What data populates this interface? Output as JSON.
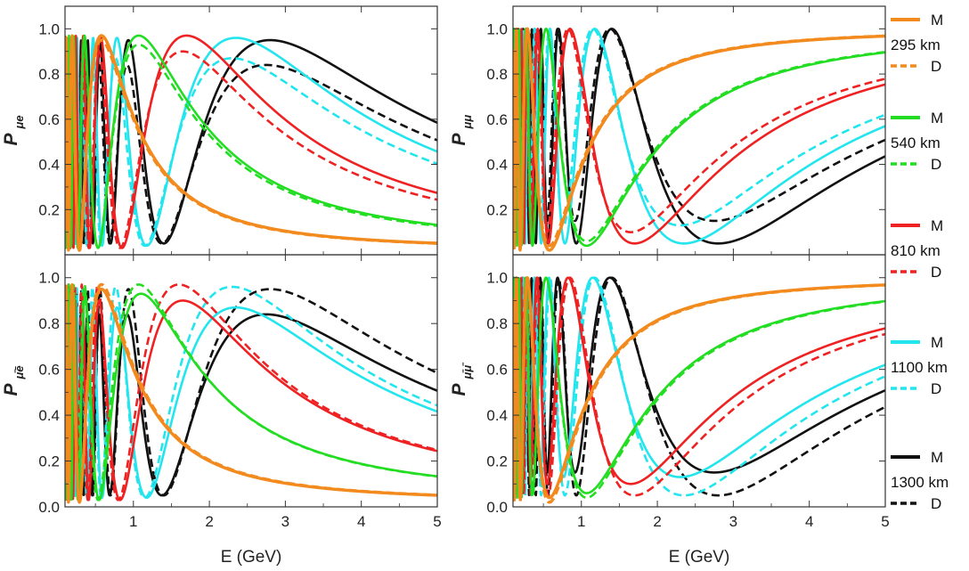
{
  "chart_data": [
    {
      "type": "line",
      "panel": "top-left",
      "ylabel_main": "P",
      "ylabel_sub": "μe",
      "xlabel": "",
      "xlim": [
        0.1,
        5
      ],
      "ylim": [
        0,
        1.1
      ],
      "xticks": [
        "1",
        "2",
        "3",
        "4",
        "5"
      ],
      "yticks": [
        "0.2",
        "0.4",
        "0.6",
        "0.8",
        "1.0"
      ],
      "series": [
        {
          "name": "295 km M",
          "color": "#f28a1e",
          "style": "solid",
          "peak": 0.97,
          "trough": 0.02,
          "first_max_E": 0.58
        },
        {
          "name": "295 km D",
          "color": "#f28a1e",
          "style": "dashed",
          "peak": 0.95,
          "trough": 0.02,
          "first_max_E": 0.58
        },
        {
          "name": "540 km M",
          "color": "#22dd22",
          "style": "solid",
          "peak": 0.97,
          "trough": 0.03,
          "first_max_E": 1.07
        },
        {
          "name": "540 km D",
          "color": "#22dd22",
          "style": "dashed",
          "peak": 0.93,
          "trough": 0.03,
          "first_max_E": 1.07
        },
        {
          "name": "810 km M",
          "color": "#ee2222",
          "style": "solid",
          "peak": 0.97,
          "trough": 0.03,
          "first_max_E": 1.7
        },
        {
          "name": "810 km D",
          "color": "#ee2222",
          "style": "dashed",
          "peak": 0.9,
          "trough": 0.03,
          "first_max_E": 1.65
        },
        {
          "name": "1100 km M",
          "color": "#22e5ee",
          "style": "solid",
          "peak": 0.96,
          "trough": 0.04,
          "first_max_E": 2.35
        },
        {
          "name": "1100 km D",
          "color": "#22e5ee",
          "style": "dashed",
          "peak": 0.87,
          "trough": 0.04,
          "first_max_E": 2.3
        },
        {
          "name": "1300 km M",
          "color": "#111111",
          "style": "solid",
          "peak": 0.95,
          "trough": 0.05,
          "first_max_E": 2.8
        },
        {
          "name": "1300 km D",
          "color": "#111111",
          "style": "dashed",
          "peak": 0.84,
          "trough": 0.05,
          "first_max_E": 2.75
        }
      ]
    },
    {
      "type": "line",
      "panel": "top-right",
      "ylabel_main": "P",
      "ylabel_sub": "μμ",
      "xlabel": "",
      "xlim": [
        0.1,
        5
      ],
      "ylim": [
        0,
        1.1
      ],
      "xticks": [
        "1",
        "2",
        "3",
        "4",
        "5"
      ],
      "yticks": [
        "0.2",
        "0.4",
        "0.6",
        "0.8",
        "1.0"
      ],
      "series": [
        {
          "name": "295 km M",
          "color": "#f28a1e",
          "style": "solid",
          "dip": 0.02,
          "last_max_E": 0.58
        },
        {
          "name": "295 km D",
          "color": "#f28a1e",
          "style": "dashed",
          "dip": 0.04,
          "last_max_E": 0.58
        },
        {
          "name": "540 km M",
          "color": "#22dd22",
          "style": "solid",
          "dip": 0.04,
          "last_max_E": 1.07
        },
        {
          "name": "540 km D",
          "color": "#22dd22",
          "style": "dashed",
          "dip": 0.06,
          "last_max_E": 1.07
        },
        {
          "name": "810 km M",
          "color": "#ee2222",
          "style": "solid",
          "dip": 0.05,
          "last_max_E": 1.7
        },
        {
          "name": "810 km D",
          "color": "#ee2222",
          "style": "dashed",
          "dip": 0.1,
          "last_max_E": 1.65
        },
        {
          "name": "1100 km M",
          "color": "#22e5ee",
          "style": "solid",
          "dip": 0.05,
          "last_max_E": 2.35
        },
        {
          "name": "1100 km D",
          "color": "#22e5ee",
          "style": "dashed",
          "dip": 0.13,
          "last_max_E": 2.3
        },
        {
          "name": "1300 km M",
          "color": "#111111",
          "style": "solid",
          "dip": 0.05,
          "last_max_E": 2.8
        },
        {
          "name": "1300 km D",
          "color": "#111111",
          "style": "dashed",
          "dip": 0.15,
          "last_max_E": 2.75
        }
      ]
    },
    {
      "type": "line",
      "panel": "bottom-left",
      "ylabel_main": "P",
      "ylabel_sub": "μ̄ē",
      "xlabel": "E (GeV)",
      "xlim": [
        0.1,
        5
      ],
      "ylim": [
        0,
        1.1
      ],
      "xticks": [
        "1",
        "2",
        "3",
        "4",
        "5"
      ],
      "yticks": [
        "0.0",
        "0.2",
        "0.4",
        "0.6",
        "0.8",
        "1.0"
      ],
      "series": [
        {
          "name": "295 km M",
          "color": "#f28a1e",
          "style": "solid",
          "peak": 0.95,
          "trough": 0.02,
          "first_max_E": 0.58
        },
        {
          "name": "295 km D",
          "color": "#f28a1e",
          "style": "dashed",
          "peak": 0.97,
          "trough": 0.02,
          "first_max_E": 0.58
        },
        {
          "name": "540 km M",
          "color": "#22dd22",
          "style": "solid",
          "peak": 0.93,
          "trough": 0.03,
          "first_max_E": 1.1
        },
        {
          "name": "540 km D",
          "color": "#22dd22",
          "style": "dashed",
          "peak": 0.97,
          "trough": 0.03,
          "first_max_E": 1.07
        },
        {
          "name": "810 km M",
          "color": "#ee2222",
          "style": "solid",
          "peak": 0.9,
          "trough": 0.03,
          "first_max_E": 1.65
        },
        {
          "name": "810 km D",
          "color": "#ee2222",
          "style": "dashed",
          "peak": 0.97,
          "trough": 0.03,
          "first_max_E": 1.6
        },
        {
          "name": "1100 km M",
          "color": "#22e5ee",
          "style": "solid",
          "peak": 0.87,
          "trough": 0.04,
          "first_max_E": 2.35
        },
        {
          "name": "1100 km D",
          "color": "#22e5ee",
          "style": "dashed",
          "peak": 0.96,
          "trough": 0.04,
          "first_max_E": 2.3
        },
        {
          "name": "1300 km M",
          "color": "#111111",
          "style": "solid",
          "peak": 0.84,
          "trough": 0.05,
          "first_max_E": 2.75
        },
        {
          "name": "1300 km D",
          "color": "#111111",
          "style": "dashed",
          "peak": 0.95,
          "trough": 0.05,
          "first_max_E": 2.8
        }
      ]
    },
    {
      "type": "line",
      "panel": "bottom-right",
      "ylabel_main": "P",
      "ylabel_sub": "μ̄μ̄",
      "xlabel": "E (GeV)",
      "xlim": [
        0.1,
        5
      ],
      "ylim": [
        0,
        1.1
      ],
      "xticks": [
        "1",
        "2",
        "3",
        "4",
        "5"
      ],
      "yticks": [
        "0.0",
        "0.2",
        "0.4",
        "0.6",
        "0.8",
        "1.0"
      ],
      "series": [
        {
          "name": "295 km M",
          "color": "#f28a1e",
          "style": "solid",
          "dip": 0.04,
          "last_max_E": 0.58
        },
        {
          "name": "295 km D",
          "color": "#f28a1e",
          "style": "dashed",
          "dip": 0.02,
          "last_max_E": 0.58
        },
        {
          "name": "540 km M",
          "color": "#22dd22",
          "style": "solid",
          "dip": 0.06,
          "last_max_E": 1.07
        },
        {
          "name": "540 km D",
          "color": "#22dd22",
          "style": "dashed",
          "dip": 0.04,
          "last_max_E": 1.07
        },
        {
          "name": "810 km M",
          "color": "#ee2222",
          "style": "solid",
          "dip": 0.1,
          "last_max_E": 1.65
        },
        {
          "name": "810 km D",
          "color": "#ee2222",
          "style": "dashed",
          "dip": 0.05,
          "last_max_E": 1.7
        },
        {
          "name": "1100 km M",
          "color": "#22e5ee",
          "style": "solid",
          "dip": 0.13,
          "last_max_E": 2.3
        },
        {
          "name": "1100 km D",
          "color": "#22e5ee",
          "style": "dashed",
          "dip": 0.05,
          "last_max_E": 2.35
        },
        {
          "name": "1300 km M",
          "color": "#111111",
          "style": "solid",
          "dip": 0.15,
          "last_max_E": 2.75
        },
        {
          "name": "1300 km D",
          "color": "#111111",
          "style": "dashed",
          "dip": 0.05,
          "last_max_E": 2.8
        }
      ]
    }
  ],
  "legend": {
    "placement": "right",
    "groups": [
      {
        "baseline": "295 km",
        "model_label": "M",
        "data_label": "D",
        "color": "#f28a1e"
      },
      {
        "baseline": "540 km",
        "model_label": "M",
        "data_label": "D",
        "color": "#22dd22"
      },
      {
        "baseline": "810 km",
        "model_label": "M",
        "data_label": "D",
        "color": "#ee2222"
      },
      {
        "baseline": "1100 km",
        "model_label": "M",
        "data_label": "D",
        "color": "#22e5ee"
      },
      {
        "baseline": "1300 km",
        "model_label": "M",
        "data_label": "D",
        "color": "#111111"
      }
    ]
  }
}
